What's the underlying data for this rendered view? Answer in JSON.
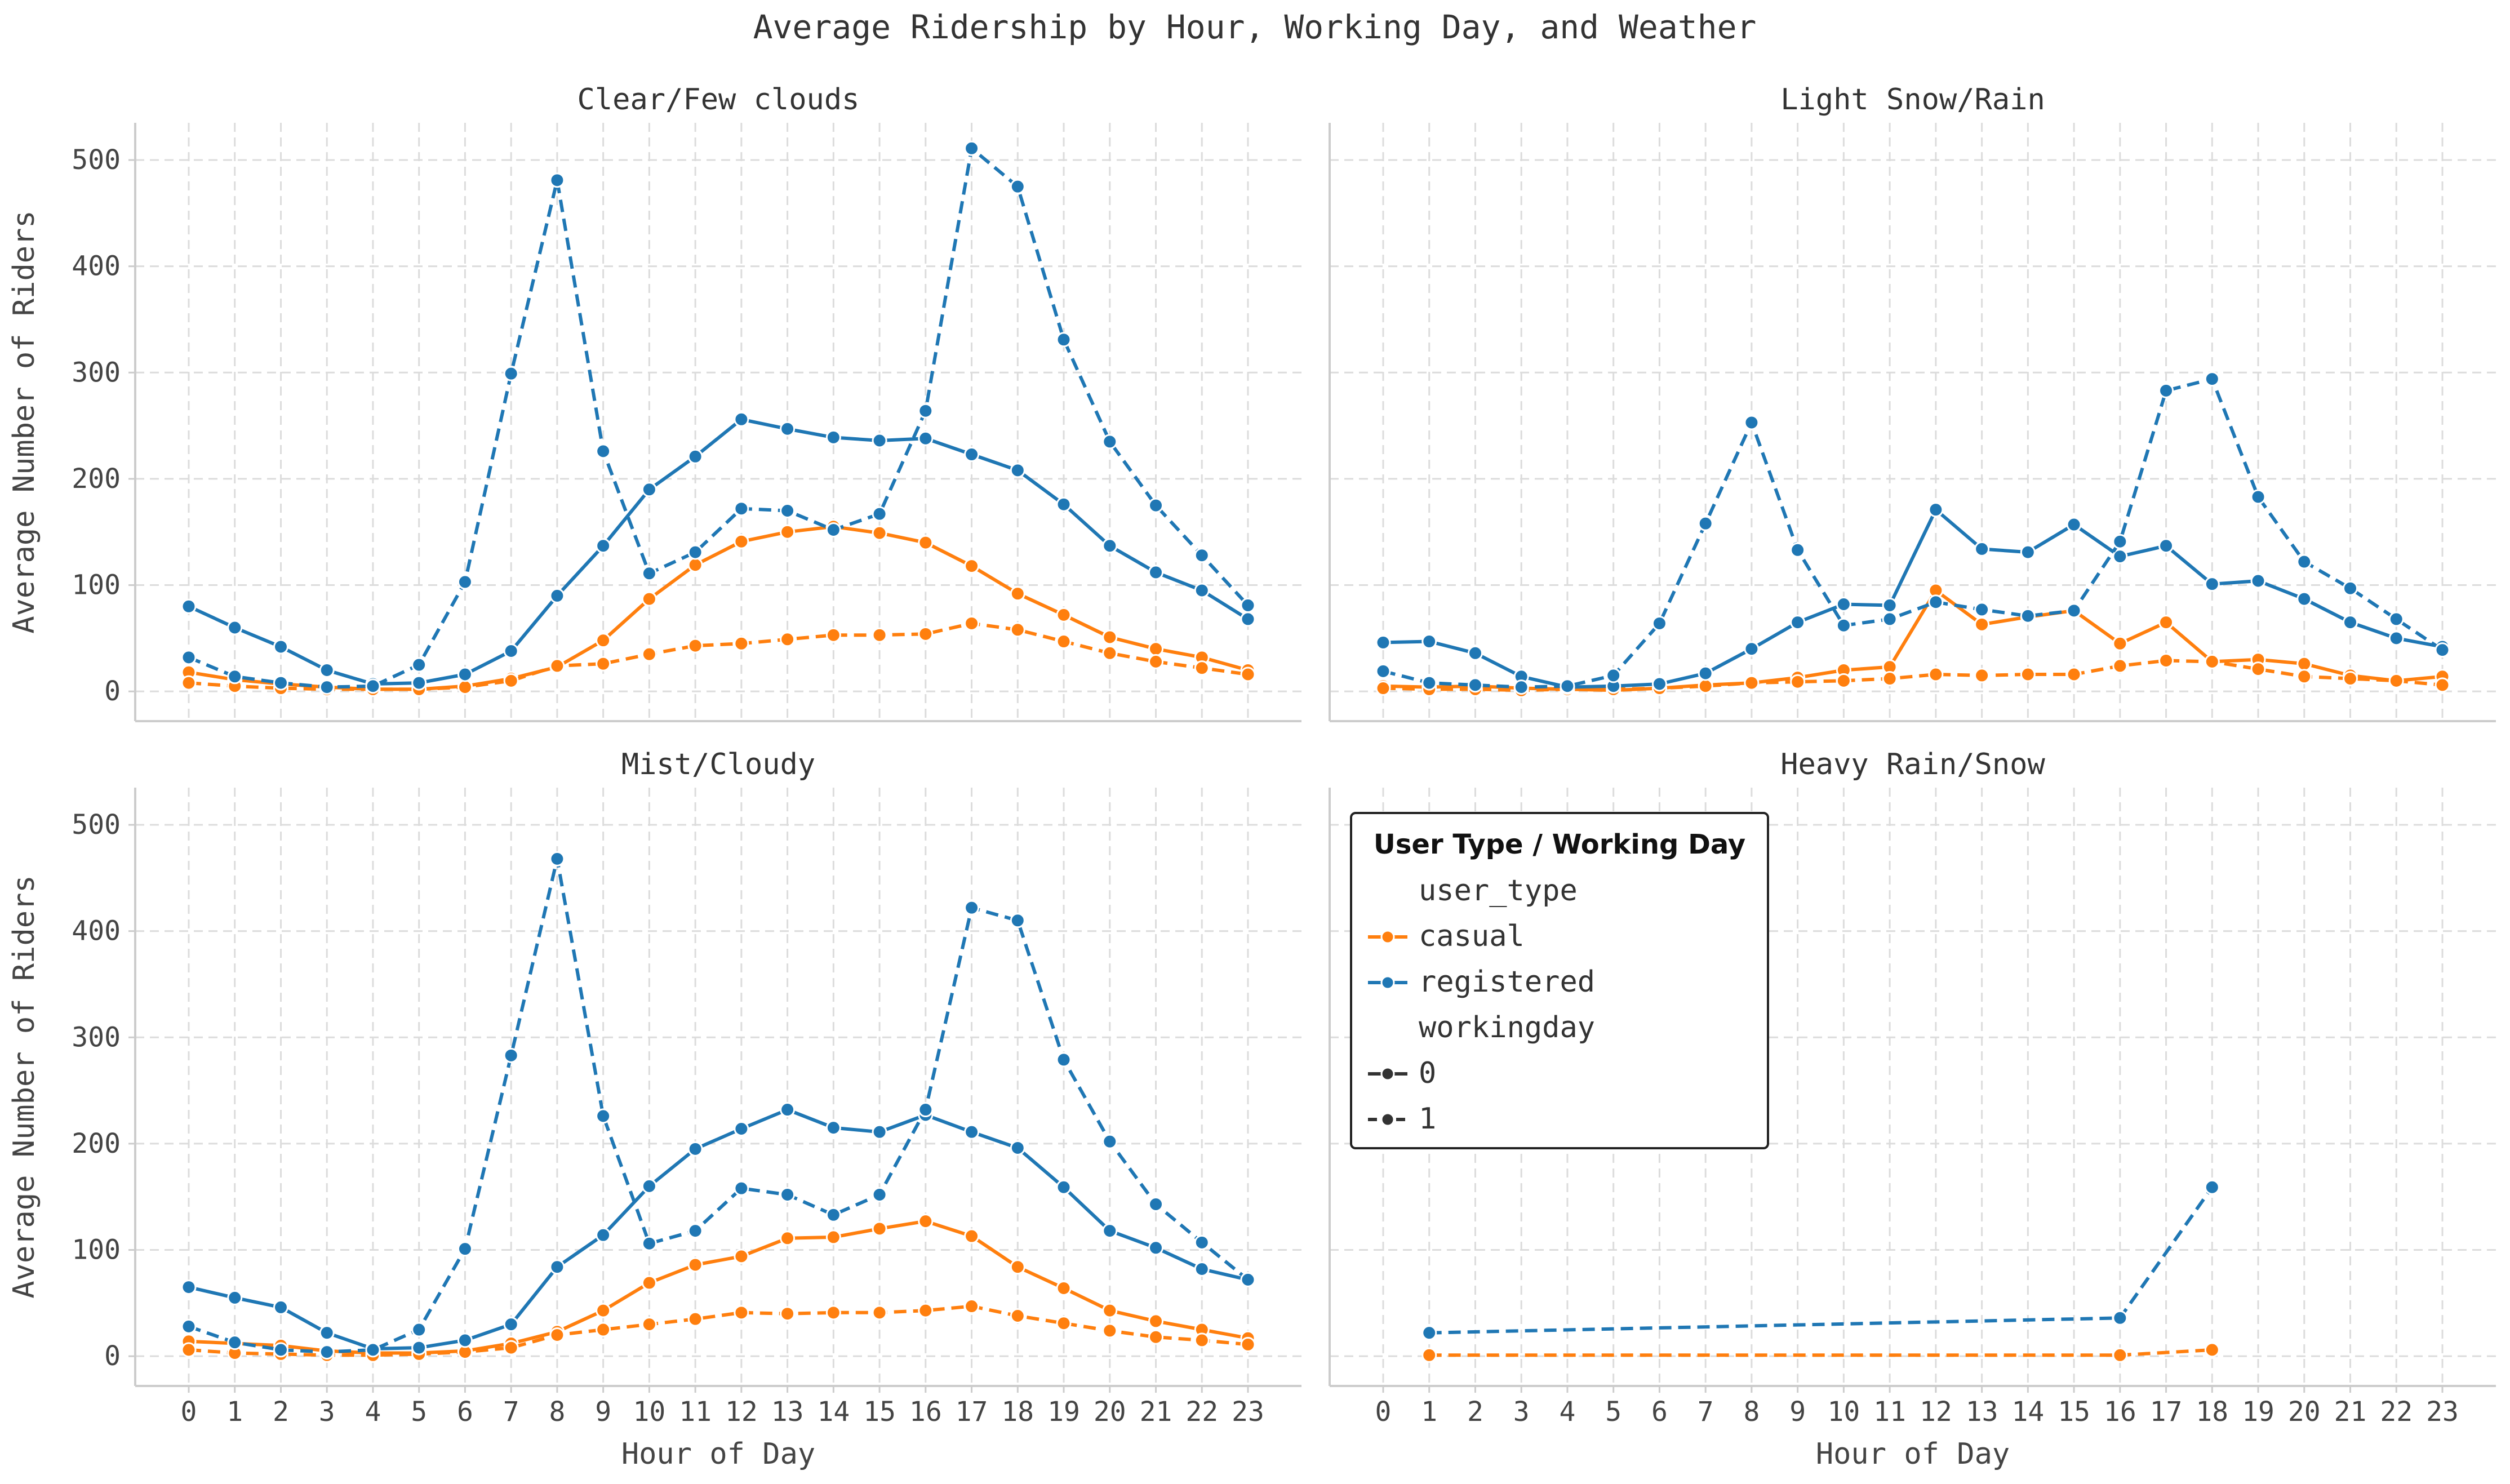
{
  "title": "Average Ridership by Hour, Working Day, and Weather",
  "colors": {
    "casual": "#ff7f0e",
    "registered": "#1f77b4",
    "grid": "#dcdcdc",
    "axis": "#cccccc",
    "text": "#444444"
  },
  "legend": {
    "title": "User Type / Working Day",
    "placement": "upper-left of Heavy Rain/Snow panel",
    "hue_header": "user_type",
    "hue_items": [
      {
        "label": "casual",
        "key": "casual"
      },
      {
        "label": "registered",
        "key": "registered"
      }
    ],
    "style_header": "workingday",
    "style_items": [
      {
        "label": "0",
        "dash": false
      },
      {
        "label": "1",
        "dash": true
      }
    ]
  },
  "chart_data": [
    {
      "type": "line",
      "title": "Clear/Few clouds",
      "xlabel": "",
      "ylabel": "Average Number of Riders",
      "x": [
        0,
        1,
        2,
        3,
        4,
        5,
        6,
        7,
        8,
        9,
        10,
        11,
        12,
        13,
        14,
        15,
        16,
        17,
        18,
        19,
        20,
        21,
        22,
        23
      ],
      "ylim": [
        -28,
        535
      ],
      "yticks": [
        0,
        100,
        200,
        300,
        400,
        500
      ],
      "grid": true,
      "series": [
        {
          "user_type": "casual",
          "workingday": "0",
          "values": [
            18,
            11,
            7,
            4,
            2,
            2,
            5,
            12,
            23,
            48,
            87,
            119,
            141,
            150,
            155,
            149,
            140,
            118,
            92,
            72,
            51,
            40,
            32,
            20
          ]
        },
        {
          "user_type": "casual",
          "workingday": "1",
          "values": [
            8,
            5,
            3,
            2,
            2,
            2,
            4,
            10,
            24,
            26,
            35,
            43,
            45,
            49,
            53,
            53,
            54,
            64,
            58,
            47,
            36,
            28,
            22,
            16
          ]
        },
        {
          "user_type": "registered",
          "workingday": "0",
          "values": [
            80,
            60,
            42,
            20,
            7,
            8,
            16,
            38,
            90,
            137,
            190,
            221,
            256,
            247,
            239,
            236,
            238,
            223,
            208,
            176,
            137,
            112,
            95,
            68
          ]
        },
        {
          "user_type": "registered",
          "workingday": "1",
          "values": [
            32,
            14,
            8,
            4,
            5,
            25,
            103,
            299,
            481,
            226,
            111,
            131,
            172,
            170,
            152,
            167,
            264,
            511,
            475,
            331,
            235,
            175,
            128,
            81
          ]
        }
      ]
    },
    {
      "type": "line",
      "title": "Light Snow/Rain",
      "xlabel": "",
      "ylabel": "",
      "x": [
        0,
        1,
        2,
        3,
        4,
        5,
        6,
        7,
        8,
        9,
        10,
        11,
        12,
        13,
        14,
        15,
        16,
        17,
        18,
        19,
        20,
        21,
        22,
        23
      ],
      "ylim": [
        -28,
        535
      ],
      "yticks": [
        0,
        100,
        200,
        300,
        400,
        500
      ],
      "grid": true,
      "series": [
        {
          "user_type": "casual",
          "workingday": "0",
          "values": [
            5,
            4,
            5,
            3,
            2,
            1,
            3,
            6,
            8,
            13,
            20,
            23,
            95,
            63,
            70,
            76,
            45,
            65,
            28,
            30,
            26,
            15,
            10,
            14
          ]
        },
        {
          "user_type": "casual",
          "workingday": "1",
          "values": [
            3,
            2,
            2,
            1,
            2,
            2,
            3,
            5,
            8,
            9,
            10,
            12,
            16,
            15,
            16,
            16,
            24,
            29,
            28,
            21,
            14,
            12,
            10,
            6
          ]
        },
        {
          "user_type": "registered",
          "workingday": "0",
          "values": [
            46,
            47,
            36,
            14,
            4,
            5,
            7,
            17,
            40,
            65,
            82,
            81,
            171,
            134,
            131,
            157,
            127,
            137,
            101,
            104,
            87,
            65,
            50,
            42
          ]
        },
        {
          "user_type": "registered",
          "workingday": "1",
          "values": [
            19,
            8,
            6,
            4,
            5,
            15,
            64,
            158,
            253,
            133,
            62,
            68,
            84,
            77,
            71,
            76,
            141,
            283,
            294,
            183,
            122,
            97,
            68,
            39
          ]
        }
      ]
    },
    {
      "type": "line",
      "title": "Mist/Cloudy",
      "xlabel": "Hour of Day",
      "ylabel": "Average Number of Riders",
      "x": [
        0,
        1,
        2,
        3,
        4,
        5,
        6,
        7,
        8,
        9,
        10,
        11,
        12,
        13,
        14,
        15,
        16,
        17,
        18,
        19,
        20,
        21,
        22,
        23
      ],
      "ylim": [
        -28,
        535
      ],
      "yticks": [
        0,
        100,
        200,
        300,
        400,
        500
      ],
      "grid": true,
      "series": [
        {
          "user_type": "casual",
          "workingday": "0",
          "values": [
            14,
            12,
            10,
            5,
            3,
            3,
            5,
            12,
            23,
            43,
            69,
            86,
            94,
            111,
            112,
            120,
            127,
            113,
            84,
            64,
            43,
            33,
            25,
            17
          ]
        },
        {
          "user_type": "casual",
          "workingday": "1",
          "values": [
            6,
            3,
            2,
            1,
            1,
            2,
            4,
            8,
            20,
            25,
            30,
            35,
            41,
            40,
            41,
            41,
            43,
            47,
            38,
            31,
            24,
            18,
            15,
            11
          ]
        },
        {
          "user_type": "registered",
          "workingday": "0",
          "values": [
            65,
            55,
            46,
            22,
            7,
            8,
            15,
            30,
            84,
            114,
            160,
            195,
            214,
            232,
            215,
            211,
            227,
            211,
            196,
            159,
            118,
            102,
            82,
            72
          ]
        },
        {
          "user_type": "registered",
          "workingday": "1",
          "values": [
            28,
            13,
            6,
            4,
            6,
            25,
            101,
            283,
            468,
            226,
            106,
            118,
            158,
            152,
            133,
            152,
            232,
            422,
            410,
            279,
            202,
            143,
            107,
            72
          ]
        }
      ]
    },
    {
      "type": "line",
      "title": "Heavy Rain/Snow",
      "xlabel": "Hour of Day",
      "ylabel": "",
      "x": [
        0,
        1,
        2,
        3,
        4,
        5,
        6,
        7,
        8,
        9,
        10,
        11,
        12,
        13,
        14,
        15,
        16,
        17,
        18,
        19,
        20,
        21,
        22,
        23
      ],
      "ylim": [
        -28,
        535
      ],
      "yticks": [
        0,
        100,
        200,
        300,
        400,
        500
      ],
      "grid": true,
      "series": [
        {
          "user_type": "casual",
          "workingday": "1",
          "values": [
            null,
            1,
            null,
            null,
            null,
            null,
            null,
            null,
            null,
            null,
            null,
            null,
            null,
            null,
            null,
            null,
            1,
            null,
            6,
            null,
            null,
            null,
            null,
            null
          ]
        },
        {
          "user_type": "registered",
          "workingday": "1",
          "values": [
            null,
            22,
            null,
            null,
            null,
            null,
            null,
            null,
            null,
            null,
            null,
            null,
            null,
            null,
            null,
            null,
            36,
            null,
            159,
            null,
            null,
            null,
            null,
            null
          ]
        }
      ]
    }
  ]
}
